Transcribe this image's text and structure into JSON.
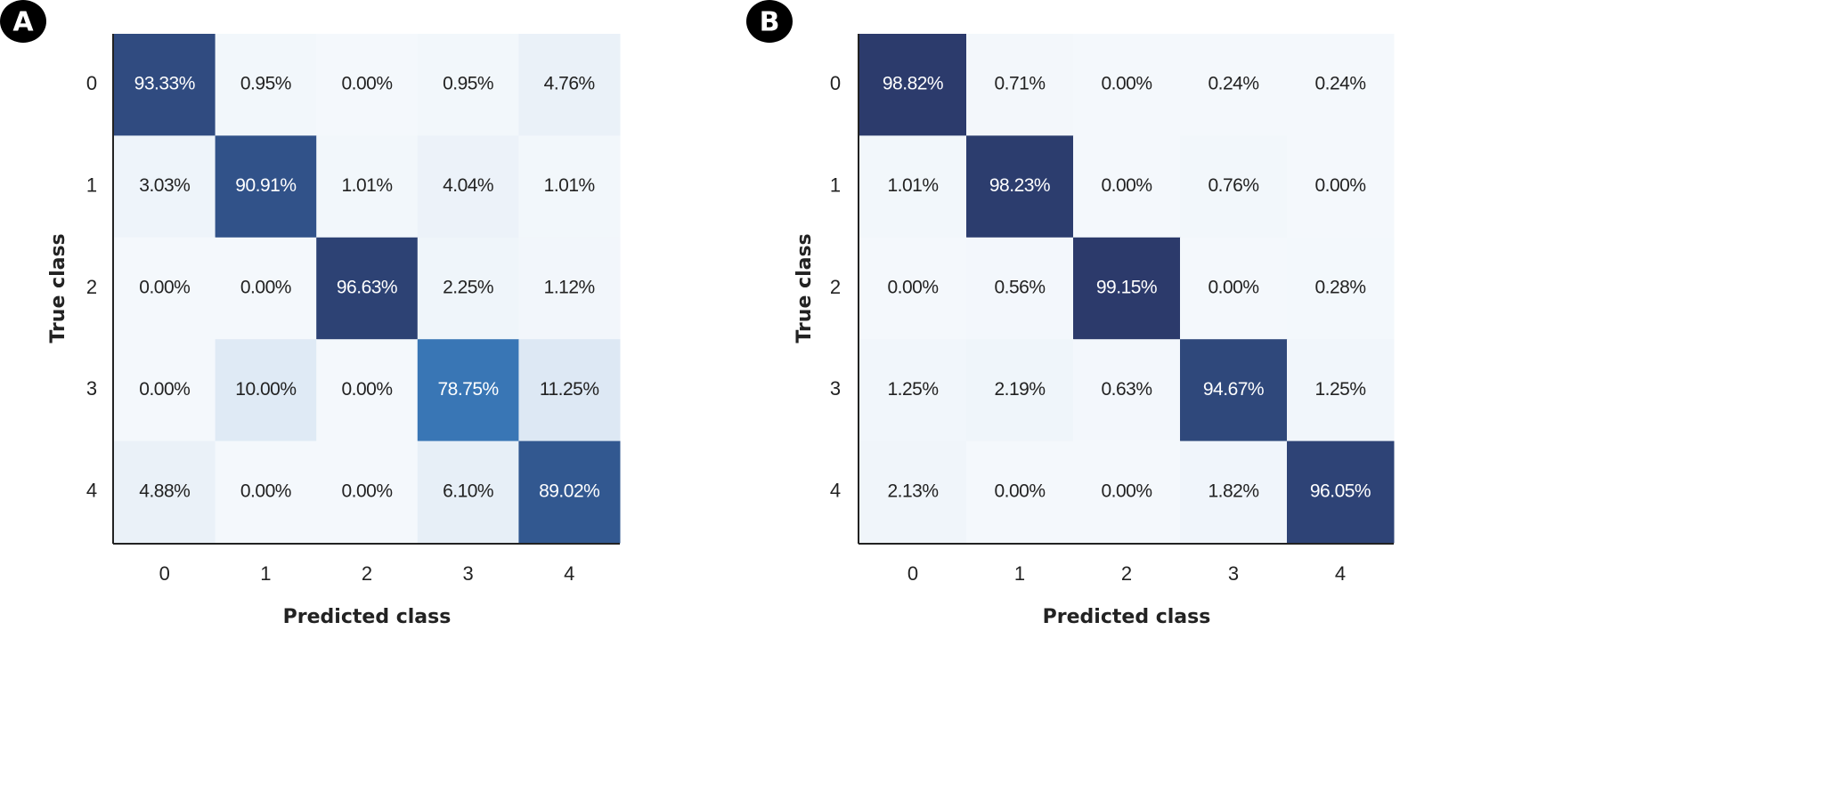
{
  "chart_data": [
    {
      "type": "heatmap",
      "panel_label": "A",
      "xlabel": "Predicted class",
      "ylabel": "True class",
      "x_categories": [
        "0",
        "1",
        "2",
        "3",
        "4"
      ],
      "y_categories": [
        "0",
        "1",
        "2",
        "3",
        "4"
      ],
      "values": [
        [
          93.33,
          0.95,
          0.0,
          0.95,
          4.76
        ],
        [
          3.03,
          90.91,
          1.01,
          4.04,
          1.01
        ],
        [
          0.0,
          0.0,
          96.63,
          2.25,
          1.12
        ],
        [
          0.0,
          10.0,
          0.0,
          78.75,
          11.25
        ],
        [
          4.88,
          0.0,
          0.0,
          6.1,
          89.02
        ]
      ],
      "labels": [
        [
          "93.33%",
          "0.95%",
          "0.00%",
          "0.95%",
          "4.76%"
        ],
        [
          "3.03%",
          "90.91%",
          "1.01%",
          "4.04%",
          "1.01%"
        ],
        [
          "0.00%",
          "0.00%",
          "96.63%",
          "2.25%",
          "1.12%"
        ],
        [
          "0.00%",
          "10.00%",
          "0.00%",
          "78.75%",
          "11.25%"
        ],
        [
          "4.88%",
          "0.00%",
          "0.00%",
          "6.10%",
          "89.02%"
        ]
      ],
      "value_range": [
        0,
        100
      ],
      "colormap": "Blues"
    },
    {
      "type": "heatmap",
      "panel_label": "B",
      "xlabel": "Predicted class",
      "ylabel": "True class",
      "x_categories": [
        "0",
        "1",
        "2",
        "3",
        "4"
      ],
      "y_categories": [
        "0",
        "1",
        "2",
        "3",
        "4"
      ],
      "values": [
        [
          98.82,
          0.71,
          0.0,
          0.24,
          0.24
        ],
        [
          1.01,
          98.23,
          0.0,
          0.76,
          0.0
        ],
        [
          0.0,
          0.56,
          99.15,
          0.0,
          0.28
        ],
        [
          1.25,
          2.19,
          0.63,
          94.67,
          1.25
        ],
        [
          2.13,
          0.0,
          0.0,
          1.82,
          96.05
        ]
      ],
      "labels": [
        [
          "98.82%",
          "0.71%",
          "0.00%",
          "0.24%",
          "0.24%"
        ],
        [
          "1.01%",
          "98.23%",
          "0.00%",
          "0.76%",
          "0.00%"
        ],
        [
          "0.00%",
          "0.56%",
          "99.15%",
          "0.00%",
          "0.28%"
        ],
        [
          "1.25%",
          "2.19%",
          "0.63%",
          "94.67%",
          "1.25%"
        ],
        [
          "2.13%",
          "0.00%",
          "0.00%",
          "1.82%",
          "96.05%"
        ]
      ],
      "value_range": [
        0,
        100
      ],
      "colormap": "Blues"
    }
  ],
  "colors": {
    "low": "#f4f8fc",
    "mid_low": "#dbe7f3",
    "mid": "#3a78b8",
    "high": "#2b3868",
    "text_dark": "#222222",
    "text_light": "#ffffff"
  }
}
